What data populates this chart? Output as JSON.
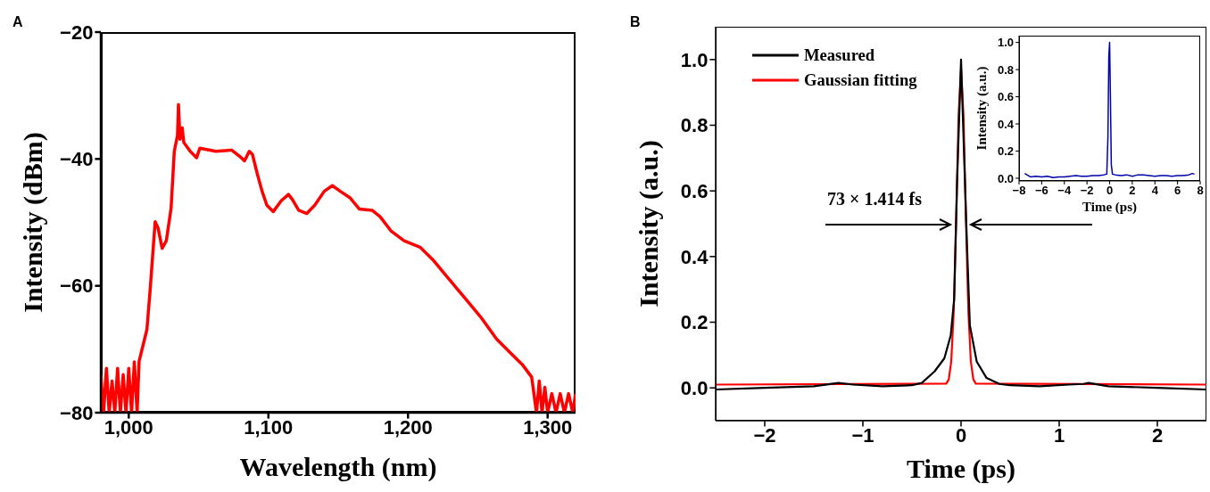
{
  "chart_data": [
    {
      "type": "line",
      "title": "A",
      "xlabel": "Wavelength (nm)",
      "ylabel": "Intensity (dBm)",
      "xlim": [
        980,
        1320
      ],
      "ylim": [
        -80,
        -20
      ],
      "xticks": [
        {
          "value": 1000,
          "label": "1,000"
        },
        {
          "value": 1100,
          "label": "1,100"
        },
        {
          "value": 1200,
          "label": "1,200"
        },
        {
          "value": 1300,
          "label": "1,300"
        }
      ],
      "yticks": [
        {
          "value": -80,
          "label": "−80"
        },
        {
          "value": -60,
          "label": "−60"
        },
        {
          "value": -40,
          "label": "−40"
        },
        {
          "value": -20,
          "label": "−20"
        }
      ],
      "grid": false,
      "legend": false,
      "marker": "none",
      "line_style": "solid",
      "series": [
        {
          "color": "#ff0000",
          "x": [
            980,
            982,
            984,
            986,
            988,
            990,
            992,
            994,
            996,
            998,
            1000,
            1002,
            1004,
            1006,
            1007.4,
            1013,
            1015.4,
            1018.9,
            1021,
            1023.9,
            1026.9,
            1030.3,
            1032.6,
            1034.9,
            1035.6,
            1036.7,
            1038.3,
            1039.4,
            1044,
            1048.6,
            1050.9,
            1062.3,
            1073.7,
            1080.6,
            1082.9,
            1086.3,
            1088.6,
            1092,
            1095.5,
            1098.9,
            1103.5,
            1109.2,
            1114.4,
            1117.2,
            1121.7,
            1127.5,
            1133.2,
            1140,
            1145.8,
            1151.5,
            1158.3,
            1165.2,
            1174.3,
            1180,
            1188,
            1197.2,
            1208.6,
            1217.8,
            1229.2,
            1240.6,
            1252,
            1263.5,
            1272.6,
            1281.8,
            1288.6,
            1292,
            1294,
            1296,
            1298,
            1300,
            1303,
            1306,
            1309,
            1312,
            1315,
            1318,
            1320
          ],
          "values": [
            -74,
            -80,
            -73,
            -80,
            -75,
            -80,
            -73,
            -80,
            -74,
            -80,
            -73,
            -80,
            -72,
            -80,
            -71.9,
            -66.9,
            -60.4,
            -49.9,
            -50.9,
            -54.1,
            -52.9,
            -47.8,
            -38.8,
            -36.3,
            -31.4,
            -36.9,
            -35.1,
            -37.4,
            -38.8,
            -39.8,
            -38.3,
            -38.8,
            -38.6,
            -39.8,
            -40.3,
            -38.8,
            -39.3,
            -42.3,
            -45.1,
            -47.3,
            -48.3,
            -46.6,
            -45.6,
            -46.4,
            -48.1,
            -48.6,
            -47.3,
            -45.1,
            -44.2,
            -45.1,
            -46.1,
            -47.9,
            -48.1,
            -49.1,
            -51.4,
            -52.9,
            -53.9,
            -55.9,
            -58.9,
            -61.9,
            -64.9,
            -68.4,
            -70.4,
            -72.4,
            -74.4,
            -80,
            -75,
            -80,
            -76,
            -80,
            -77,
            -80,
            -77,
            -80,
            -77,
            -80,
            -77
          ]
        }
      ]
    },
    {
      "type": "line",
      "title": "B",
      "xlabel": "Time (ps)",
      "ylabel": "Intensity (a.u.)",
      "xlim": [
        -2.5,
        2.5
      ],
      "ylim": [
        -0.1,
        1.1
      ],
      "xticks": [
        {
          "value": -2,
          "label": "−2"
        },
        {
          "value": -1,
          "label": "−1"
        },
        0,
        1,
        2
      ],
      "yticks": [
        {
          "value": 0,
          "label": "0.0"
        },
        {
          "value": 0.2,
          "label": "0.2"
        },
        {
          "value": 0.4,
          "label": "0.4"
        },
        {
          "value": 0.6,
          "label": "0.6"
        },
        {
          "value": 0.8,
          "label": "0.8"
        },
        {
          "value": 1,
          "label": "1.0"
        }
      ],
      "grid": false,
      "legend": "top left",
      "marker": "none",
      "line_style": "solid",
      "annotations": [
        "73 × 1.414 fs"
      ],
      "series": [
        {
          "name": "Measured",
          "color": "#000000",
          "x": [
            -2.5,
            -2,
            -1.5,
            -1.25,
            -1.1,
            -0.8,
            -0.5,
            -0.4,
            -0.27,
            -0.17,
            -0.105,
            -0.07,
            -0.04,
            0,
            0.06,
            0.09,
            0.16,
            0.26,
            0.39,
            0.5,
            0.8,
            1.1,
            1.25,
            1.3,
            1.5,
            2,
            2.5
          ],
          "values": [
            -0.005,
            0,
            0.005,
            0.015,
            0.01,
            0.005,
            0.008,
            0.015,
            0.05,
            0.09,
            0.16,
            0.27,
            0.63,
            1,
            0.44,
            0.19,
            0.08,
            0.03,
            0.012,
            0.008,
            0.005,
            0.01,
            0.012,
            0.015,
            0.005,
            0,
            -0.005
          ]
        },
        {
          "name": "Gaussian fitting",
          "color": "#ff0000",
          "x": [
            -2.5,
            -0.15,
            -0.125,
            -0.1,
            -0.075,
            -0.05,
            -0.025,
            0,
            0.025,
            0.05,
            0.075,
            0.1,
            0.125,
            0.15,
            2.5
          ],
          "values": [
            0.01,
            0.013,
            0.026,
            0.08,
            0.23,
            0.51,
            0.83,
            0.97,
            0.83,
            0.51,
            0.23,
            0.08,
            0.026,
            0.013,
            0.01
          ]
        }
      ]
    },
    {
      "type": "line",
      "xlabel": "Time (ps)",
      "ylabel": "Intensity (a.u.)",
      "xlim": [
        -8,
        8
      ],
      "ylim": [
        -0.02,
        1.05
      ],
      "xticks": [
        {
          "value": -8,
          "label": "−8"
        },
        {
          "value": -6,
          "label": "−6"
        },
        {
          "value": -4,
          "label": "−4"
        },
        {
          "value": -2,
          "label": "−2"
        },
        0,
        2,
        4,
        6,
        8
      ],
      "yticks": [
        {
          "value": 0,
          "label": "0.0"
        },
        {
          "value": 0.2,
          "label": "0.2"
        },
        {
          "value": 0.4,
          "label": "0.4"
        },
        {
          "value": 0.6,
          "label": "0.6"
        },
        {
          "value": 0.8,
          "label": "0.8"
        },
        {
          "value": 1,
          "label": "1.0"
        }
      ],
      "grid": false,
      "legend": false,
      "marker": "none",
      "line_style": "solid",
      "series": [
        {
          "color": "#0000aa",
          "x": [
            -7.5,
            -7.2,
            -7,
            -6.5,
            -6,
            -5.5,
            -5,
            -4.5,
            -4,
            -3.5,
            -3,
            -2.5,
            -2,
            -1.5,
            -1,
            -0.5,
            -0.25,
            -0.15,
            -0.07,
            0,
            0.07,
            0.15,
            0.25,
            0.5,
            1,
            1.5,
            2,
            2.5,
            3,
            3.5,
            4,
            4.5,
            5,
            5.5,
            6,
            6.5,
            7,
            7.3,
            7.5
          ],
          "values": [
            0.035,
            0.02,
            0.01,
            0.015,
            0.01,
            0.015,
            0.005,
            0.01,
            0.01,
            0.015,
            0.02,
            0.015,
            0.015,
            0.02,
            0.02,
            0.025,
            0.03,
            0.3,
            0.9,
            1,
            0.6,
            0.1,
            0.03,
            0.025,
            0.02,
            0.025,
            0.015,
            0.025,
            0.025,
            0.02,
            0.015,
            0.02,
            0.02,
            0.015,
            0.02,
            0.02,
            0.025,
            0.035,
            0.03
          ]
        }
      ]
    }
  ]
}
